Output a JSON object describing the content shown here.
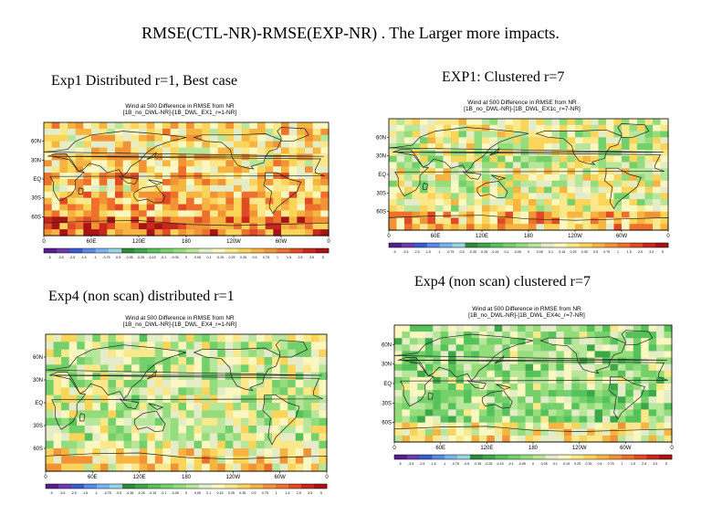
{
  "page": {
    "title": "RMSE(CTL-NR)-RMSE(EXP-NR) .  The Larger more impacts."
  },
  "chart_data": [
    {
      "type": "heatmap",
      "caption": "Exp1 Distributed r=1, Best case",
      "title": "Wind at 500 Difference in RMSE from NR",
      "subtitle": "[1B_no_DWL-NR]-[1B_DWL_EX1_r=1-NR]",
      "x_ticks": [
        "0",
        "60E",
        "120E",
        "180",
        "120W",
        "60W",
        "0"
      ],
      "y_ticks": [
        "60N",
        "30N",
        "EQ",
        "30S",
        "60S"
      ],
      "colorbar_labels": [
        "-5",
        "-3.5",
        "-2.5",
        "-1.5",
        "-1",
        "-0.75",
        "-0.5",
        "-0.35",
        "-0.25",
        "-0.15",
        "-0.1",
        "-0.05",
        "0",
        "0.05",
        "0.1",
        "0.15",
        "0.25",
        "0.35",
        "0.5",
        "0.75",
        "1",
        "1.5",
        "2.5",
        "3.5",
        "5"
      ],
      "dominant": "positive"
    },
    {
      "type": "heatmap",
      "caption": "EXP1:  Clustered r=7",
      "title": "Wind at 500 Difference in RMSE from NR",
      "subtitle": "[1B_no_DWL-NR]-[1B_DWL_EX1c_r=7-NR]",
      "x_ticks": [
        "0",
        "60E",
        "120E",
        "180",
        "120W",
        "60W",
        "0"
      ],
      "y_ticks": [
        "60N",
        "30N",
        "EQ",
        "30S",
        "60S"
      ],
      "colorbar_labels": [
        "-5",
        "-3.5",
        "-2.5",
        "-1.5",
        "-1",
        "-0.75",
        "-0.5",
        "-0.35",
        "-0.25",
        "-0.15",
        "-0.1",
        "-0.05",
        "0",
        "0.05",
        "0.1",
        "0.15",
        "0.25",
        "0.35",
        "0.5",
        "0.75",
        "1",
        "1.5",
        "2.5",
        "3.5",
        "5"
      ],
      "dominant": "mixed"
    },
    {
      "type": "heatmap",
      "caption": "Exp4 (non scan) distributed r=1",
      "title": "Wind at 500 Difference in RMSE from NR",
      "subtitle": "[1B_no_DWL-NR]-[1B_DWL_EX4_r=1-NR]",
      "x_ticks": [
        "0",
        "60E",
        "120E",
        "180",
        "120W",
        "60W",
        "0"
      ],
      "y_ticks": [
        "60N",
        "30N",
        "EQ",
        "30S",
        "60S"
      ],
      "colorbar_labels": [
        "-5",
        "-3.5",
        "-2.5",
        "-1.5",
        "-1",
        "-0.75",
        "-0.5",
        "-0.35",
        "-0.25",
        "-0.15",
        "-0.1",
        "-0.05",
        "0",
        "0.05",
        "0.1",
        "0.15",
        "0.25",
        "0.35",
        "0.5",
        "0.75",
        "1",
        "1.5",
        "2.5",
        "3.5",
        "5"
      ],
      "dominant": "neutral"
    },
    {
      "type": "heatmap",
      "caption": "Exp4 (non scan) clustered r=7",
      "title": "Wind at 500 Difference in RMSE from NR",
      "subtitle": "[1B_no_DWL-NR]-[1B_DWL_EX4c_r=7-NR]",
      "x_ticks": [
        "0",
        "60E",
        "120E",
        "180",
        "120W",
        "60W",
        "0"
      ],
      "y_ticks": [
        "60N",
        "30N",
        "EQ",
        "30S",
        "60S"
      ],
      "colorbar_labels": [
        "-5",
        "-3.5",
        "-2.5",
        "-1.5",
        "-1",
        "-0.75",
        "-0.5",
        "-0.35",
        "-0.25",
        "-0.15",
        "-0.1",
        "-0.05",
        "0",
        "0.05",
        "0.1",
        "0.15",
        "0.25",
        "0.35",
        "0.5",
        "0.75",
        "1",
        "1.5",
        "2.5",
        "3.5",
        "5"
      ],
      "dominant": "negative"
    }
  ],
  "colorscale": [
    "#5a1e8c",
    "#6a3ab0",
    "#3c5ad0",
    "#5a8ae6",
    "#7ab4f0",
    "#9ad2e6",
    "#2e8b3a",
    "#3ca84a",
    "#56c25a",
    "#74d06a",
    "#94dc7c",
    "#b8e69a",
    "#e4ecc8",
    "#fbf7c0",
    "#fbe88a",
    "#fbd45a",
    "#f7b440",
    "#f29436",
    "#ee702c",
    "#e04a24",
    "#c8281c",
    "#a81414"
  ]
}
